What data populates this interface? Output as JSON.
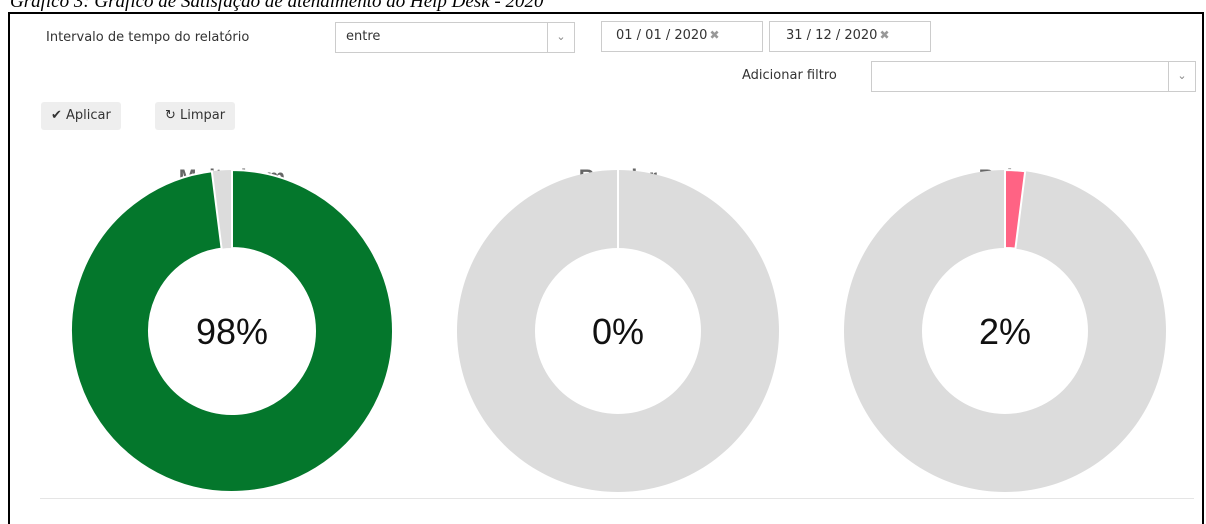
{
  "caption": "Gráfico 3: Gráfico de Satisfação de atendimento do Help Desk - 2020",
  "filter": {
    "label": "Intervalo de tempo do relatório",
    "operator": "entre",
    "date_from": "01 / 01 / 2020",
    "date_to": "31 / 12 / 2020",
    "add_filter": "Adicionar filtro"
  },
  "buttons": {
    "apply": "Aplicar",
    "clear": "Limpar"
  },
  "gauges": [
    {
      "title": "Muito bom",
      "value": 98,
      "value_label": "98%",
      "color": "#04772c"
    },
    {
      "title": "Regular",
      "value": 0,
      "value_label": "0%",
      "color": "#36a2eb"
    },
    {
      "title": "Ruim",
      "value": 2,
      "value_label": "2%",
      "color": "#ff6384"
    }
  ],
  "rest_color": "#dcdcdc"
}
